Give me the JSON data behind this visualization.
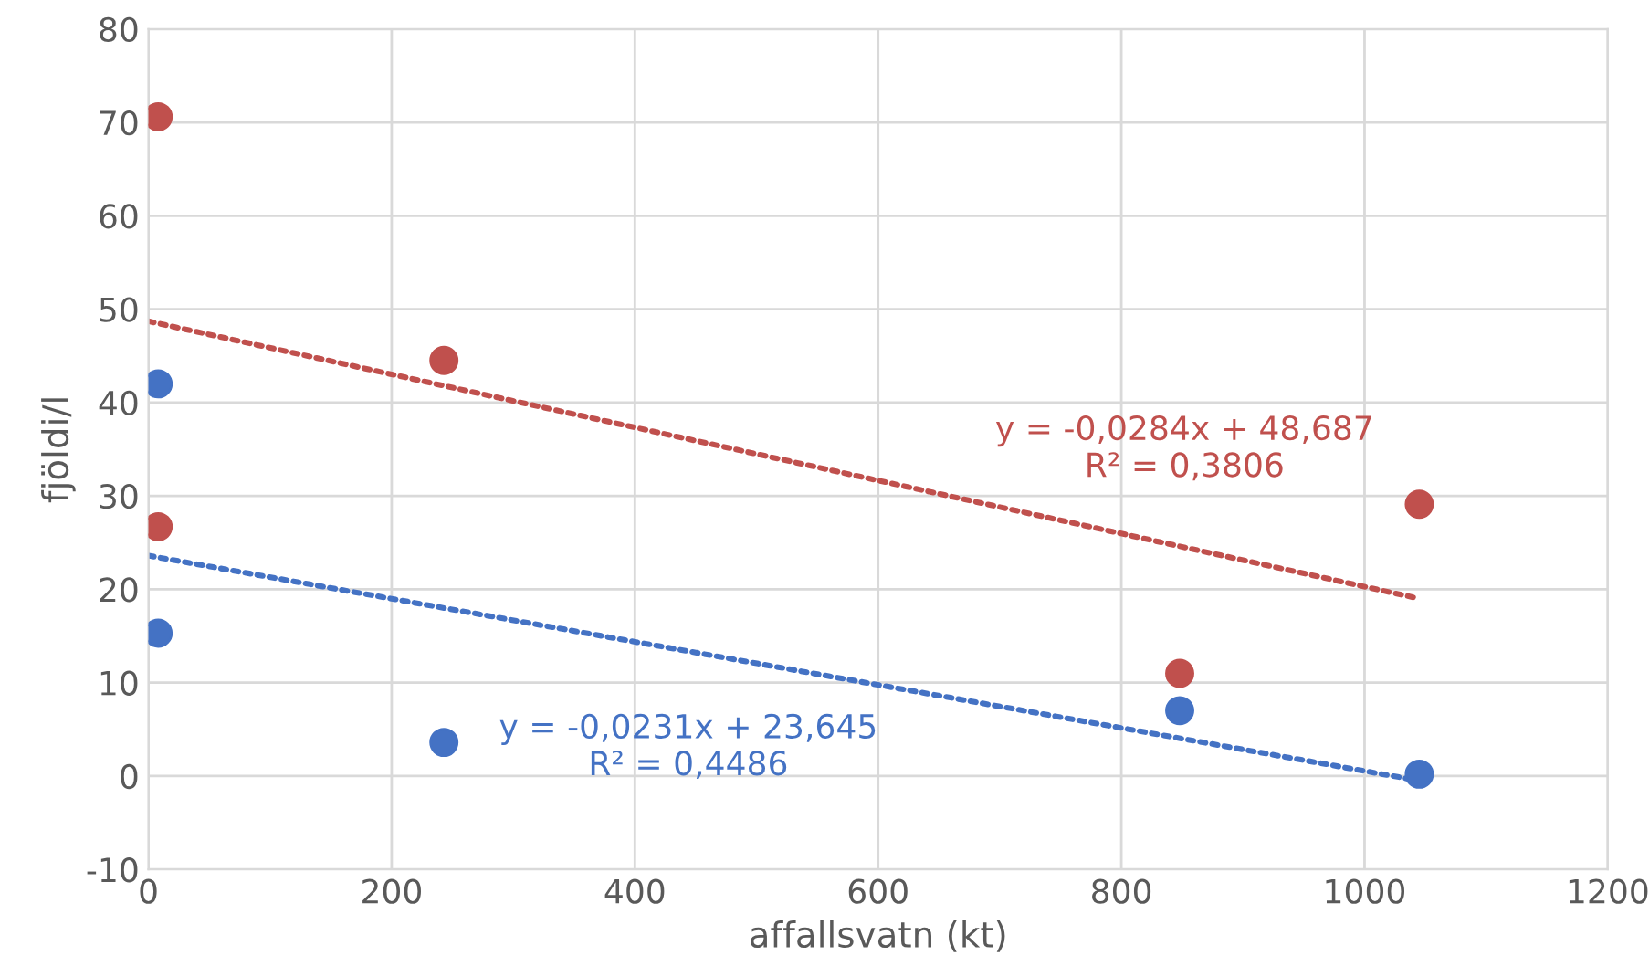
{
  "chart_data": {
    "type": "scatter",
    "xlabel": "affallsvatn (kt)",
    "ylabel": "fjöldi/l",
    "xlim": [
      0,
      1200
    ],
    "xticks": [
      0,
      200,
      400,
      600,
      800,
      1000,
      1200
    ],
    "ylim": [
      -10,
      80
    ],
    "yticks": [
      -10,
      0,
      10,
      20,
      30,
      40,
      50,
      60,
      70,
      80
    ],
    "grid": true,
    "series": [
      {
        "marker": "circle",
        "color": "#4472c4",
        "x": [
          8,
          8,
          243,
          848,
          1045
        ],
        "values": [
          42,
          15.3,
          3.6,
          7.0,
          0.2
        ]
      },
      {
        "marker": "circle",
        "color": "#c0504d",
        "x": [
          8,
          8,
          243,
          848,
          1045
        ],
        "values": [
          70.6,
          26.7,
          44.5,
          11.0,
          29.1
        ]
      },
      {
        "type": "line",
        "marker": "none",
        "line_style": "dotted",
        "color": "#4472c4",
        "x": [
          0,
          1045
        ],
        "values": [
          23.6,
          -0.5
        ]
      },
      {
        "type": "line",
        "marker": "none",
        "line_style": "dotted",
        "color": "#c0504d",
        "x": [
          0,
          1045
        ],
        "values": [
          48.7,
          19.0
        ]
      }
    ],
    "annotations": [
      "y = -0,0231x + 23,645\nR² = 0,4486",
      "y = -0,0284x + 48,687\nR² = 0,3806"
    ]
  }
}
